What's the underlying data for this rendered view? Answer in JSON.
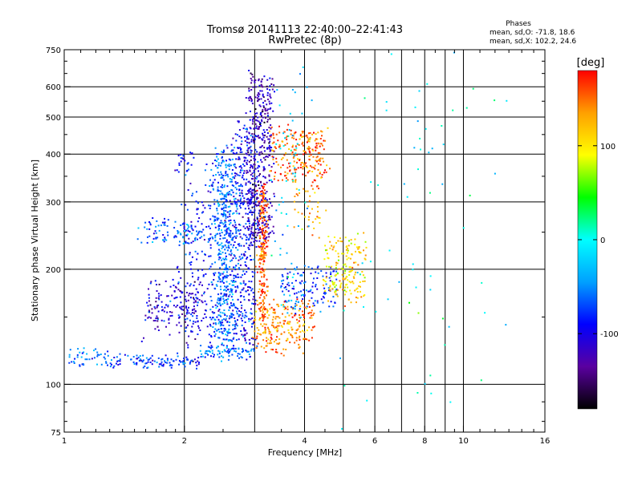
{
  "chart_data": {
    "type": "scatter",
    "title": "Tromsø 20141113 22:40:00–22:41:43",
    "subtitle": "RwPretec (8p)",
    "xlabel": "Frequency [MHz]",
    "ylabel": "Stationary phase Virtual Height [km]",
    "x_scale": "log",
    "y_scale": "log",
    "xlim": [
      1,
      16
    ],
    "ylim": [
      75,
      750
    ],
    "x_ticks": [
      1,
      2,
      4,
      6,
      8,
      10,
      16
    ],
    "x_minor_ticks": [
      3,
      5,
      7,
      9
    ],
    "y_ticks": [
      75,
      100,
      200,
      300,
      400,
      500,
      600,
      750
    ],
    "grid": true,
    "stats_header": "Phases",
    "stats_lines": [
      "mean, sd,O: -71.8, 18.6",
      "mean, sd,X: 102.2, 24.6"
    ],
    "colorbar": {
      "label": "[deg]",
      "range": [
        -180,
        180
      ],
      "ticks": [
        100,
        0,
        -100
      ],
      "colors": [
        "#000000",
        "#5a00a0",
        "#0000ff",
        "#00a0ff",
        "#00ffff",
        "#00ff00",
        "#ffff00",
        "#ffa000",
        "#ff0000"
      ]
    },
    "series": [
      {
        "x": [
          1.0,
          1.3
        ],
        "y": [
          122,
          112
        ],
        "phase": -60,
        "spread": 0.03,
        "n": 45
      },
      {
        "x": [
          1.3,
          2.2
        ],
        "y": [
          112,
          118
        ],
        "phase": -75,
        "spread": 0.03,
        "n": 110
      },
      {
        "x": [
          2.2,
          3.0
        ],
        "y": [
          118,
          125
        ],
        "phase": -60,
        "spread": 0.03,
        "n": 80
      },
      {
        "x": [
          1.55,
          2.4
        ],
        "y": [
          235,
          265
        ],
        "phase": -70,
        "spread": 0.04,
        "n": 110
      },
      {
        "x": [
          2.4,
          2.65
        ],
        "y": [
          125,
          400
        ],
        "phase": -60,
        "spread": 0.1,
        "n": 520
      },
      {
        "x": [
          2.65,
          3.0
        ],
        "y": [
          130,
          480
        ],
        "phase": -90,
        "spread": 0.1,
        "n": 420
      },
      {
        "x": [
          2.9,
          3.3
        ],
        "y": [
          240,
          640
        ],
        "phase": -120,
        "spread": 0.07,
        "n": 420
      },
      {
        "x": [
          1.6,
          2.2
        ],
        "y": [
          140,
          180
        ],
        "phase": -110,
        "spread": 0.08,
        "n": 160
      },
      {
        "x": [
          2.0,
          2.4
        ],
        "y": [
          130,
          320
        ],
        "phase": -90,
        "spread": 0.14,
        "n": 160
      },
      {
        "x": [
          1.9,
          2.1
        ],
        "y": [
          360,
          400
        ],
        "phase": -90,
        "spread": 0.05,
        "n": 25
      },
      {
        "x": [
          3.1,
          3.2
        ],
        "y": [
          150,
          330
        ],
        "phase": 160,
        "spread": 0.04,
        "n": 200
      },
      {
        "x": [
          3.3,
          4.6
        ],
        "y": [
          340,
          460
        ],
        "phase": 150,
        "spread": 0.05,
        "n": 230
      },
      {
        "x": [
          3.0,
          4.2
        ],
        "y": [
          122,
          165
        ],
        "phase": 140,
        "spread": 0.04,
        "n": 240
      },
      {
        "x": [
          3.5,
          4.8
        ],
        "y": [
          160,
          200
        ],
        "phase": -80,
        "spread": 0.05,
        "n": 120
      },
      {
        "x": [
          4.5,
          5.7
        ],
        "y": [
          170,
          240
        ],
        "phase": 110,
        "spread": 0.05,
        "n": 180
      },
      {
        "x": [
          3.7,
          4.5
        ],
        "y": [
          250,
          330
        ],
        "phase": 125,
        "spread": 0.05,
        "n": 40
      },
      {
        "x": [
          3.4,
          4.0
        ],
        "y": [
          150,
          600
        ],
        "phase": -20,
        "spread": 0.12,
        "n": 70
      },
      {
        "x": [
          4.6,
          12.0
        ],
        "y": [
          80,
          650
        ],
        "phase": 0,
        "spread": 0.4,
        "n": 70
      }
    ]
  }
}
